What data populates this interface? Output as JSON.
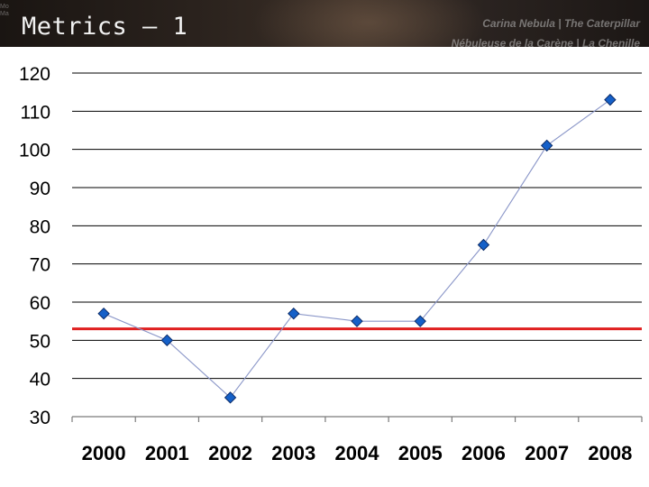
{
  "slide": {
    "title": "Metrics – 1",
    "caption_en": "Carina Nebula | The Caterpillar",
    "caption_fr": "Nébuleuse de la Carène | La Chenille",
    "side_text": "Mo Ma"
  },
  "chart_data": {
    "type": "line",
    "categories": [
      "2000",
      "2001",
      "2002",
      "2003",
      "2004",
      "2005",
      "2006",
      "2007",
      "2008"
    ],
    "series": [
      {
        "values": [
          57,
          50,
          35,
          57,
          55,
          55,
          75,
          101,
          113
        ],
        "color": "#1560c8"
      }
    ],
    "reference_line": {
      "value": 53,
      "color": "#e02020"
    },
    "yticks": [
      "120",
      "110",
      "100",
      "90",
      "80",
      "70",
      "60",
      "50",
      "40",
      "30"
    ],
    "ylim": [
      30,
      120
    ],
    "grid": true,
    "title": "",
    "xlabel": "",
    "ylabel": ""
  }
}
